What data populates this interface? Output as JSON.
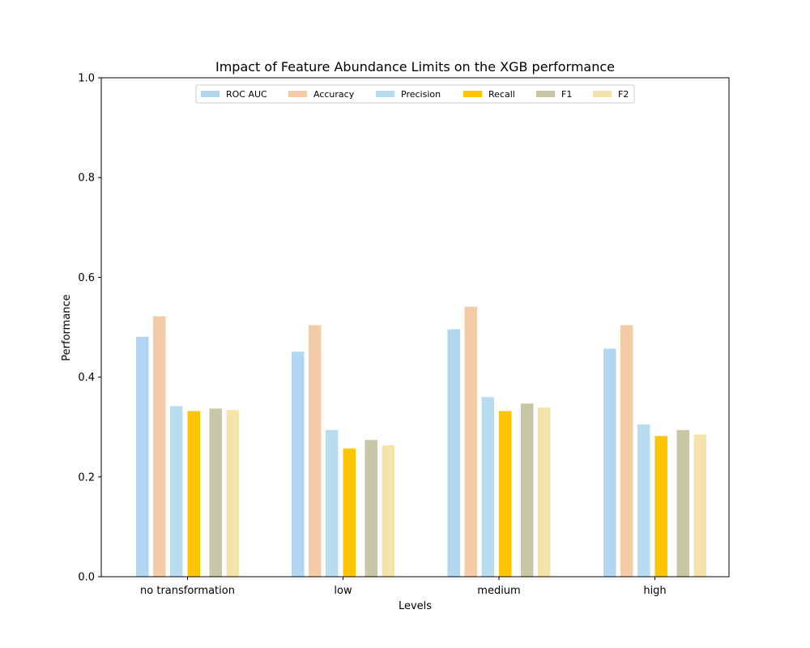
{
  "chart_data": {
    "type": "bar",
    "title": "Impact of Feature Abundance Limits on the XGB performance",
    "xlabel": "Levels",
    "ylabel": "Performance",
    "ylim": [
      0,
      1.0
    ],
    "yticks": [
      0.0,
      0.2,
      0.4,
      0.6,
      0.8,
      1.0
    ],
    "ytick_labels": [
      "0.0",
      "0.2",
      "0.4",
      "0.6",
      "0.8",
      "1.0"
    ],
    "categories": [
      "no transformation",
      "low",
      "medium",
      "high"
    ],
    "grid": false,
    "legend_position": "upper center",
    "series": [
      {
        "name": "ROC AUC",
        "color": "#b3d7f0",
        "values": [
          0.481,
          0.451,
          0.496,
          0.457
        ]
      },
      {
        "name": "Accuracy",
        "color": "#f4caa7",
        "values": [
          0.522,
          0.504,
          0.541,
          0.504
        ]
      },
      {
        "name": "Precision",
        "color": "#b8dcf0",
        "values": [
          0.342,
          0.294,
          0.36,
          0.305
        ]
      },
      {
        "name": "Recall",
        "color": "#ffc400",
        "values": [
          0.332,
          0.257,
          0.332,
          0.282
        ]
      },
      {
        "name": "F1",
        "color": "#c9c6a8",
        "values": [
          0.337,
          0.274,
          0.347,
          0.294
        ]
      },
      {
        "name": "F2",
        "color": "#f4e4ac",
        "values": [
          0.334,
          0.263,
          0.339,
          0.285
        ]
      }
    ]
  }
}
